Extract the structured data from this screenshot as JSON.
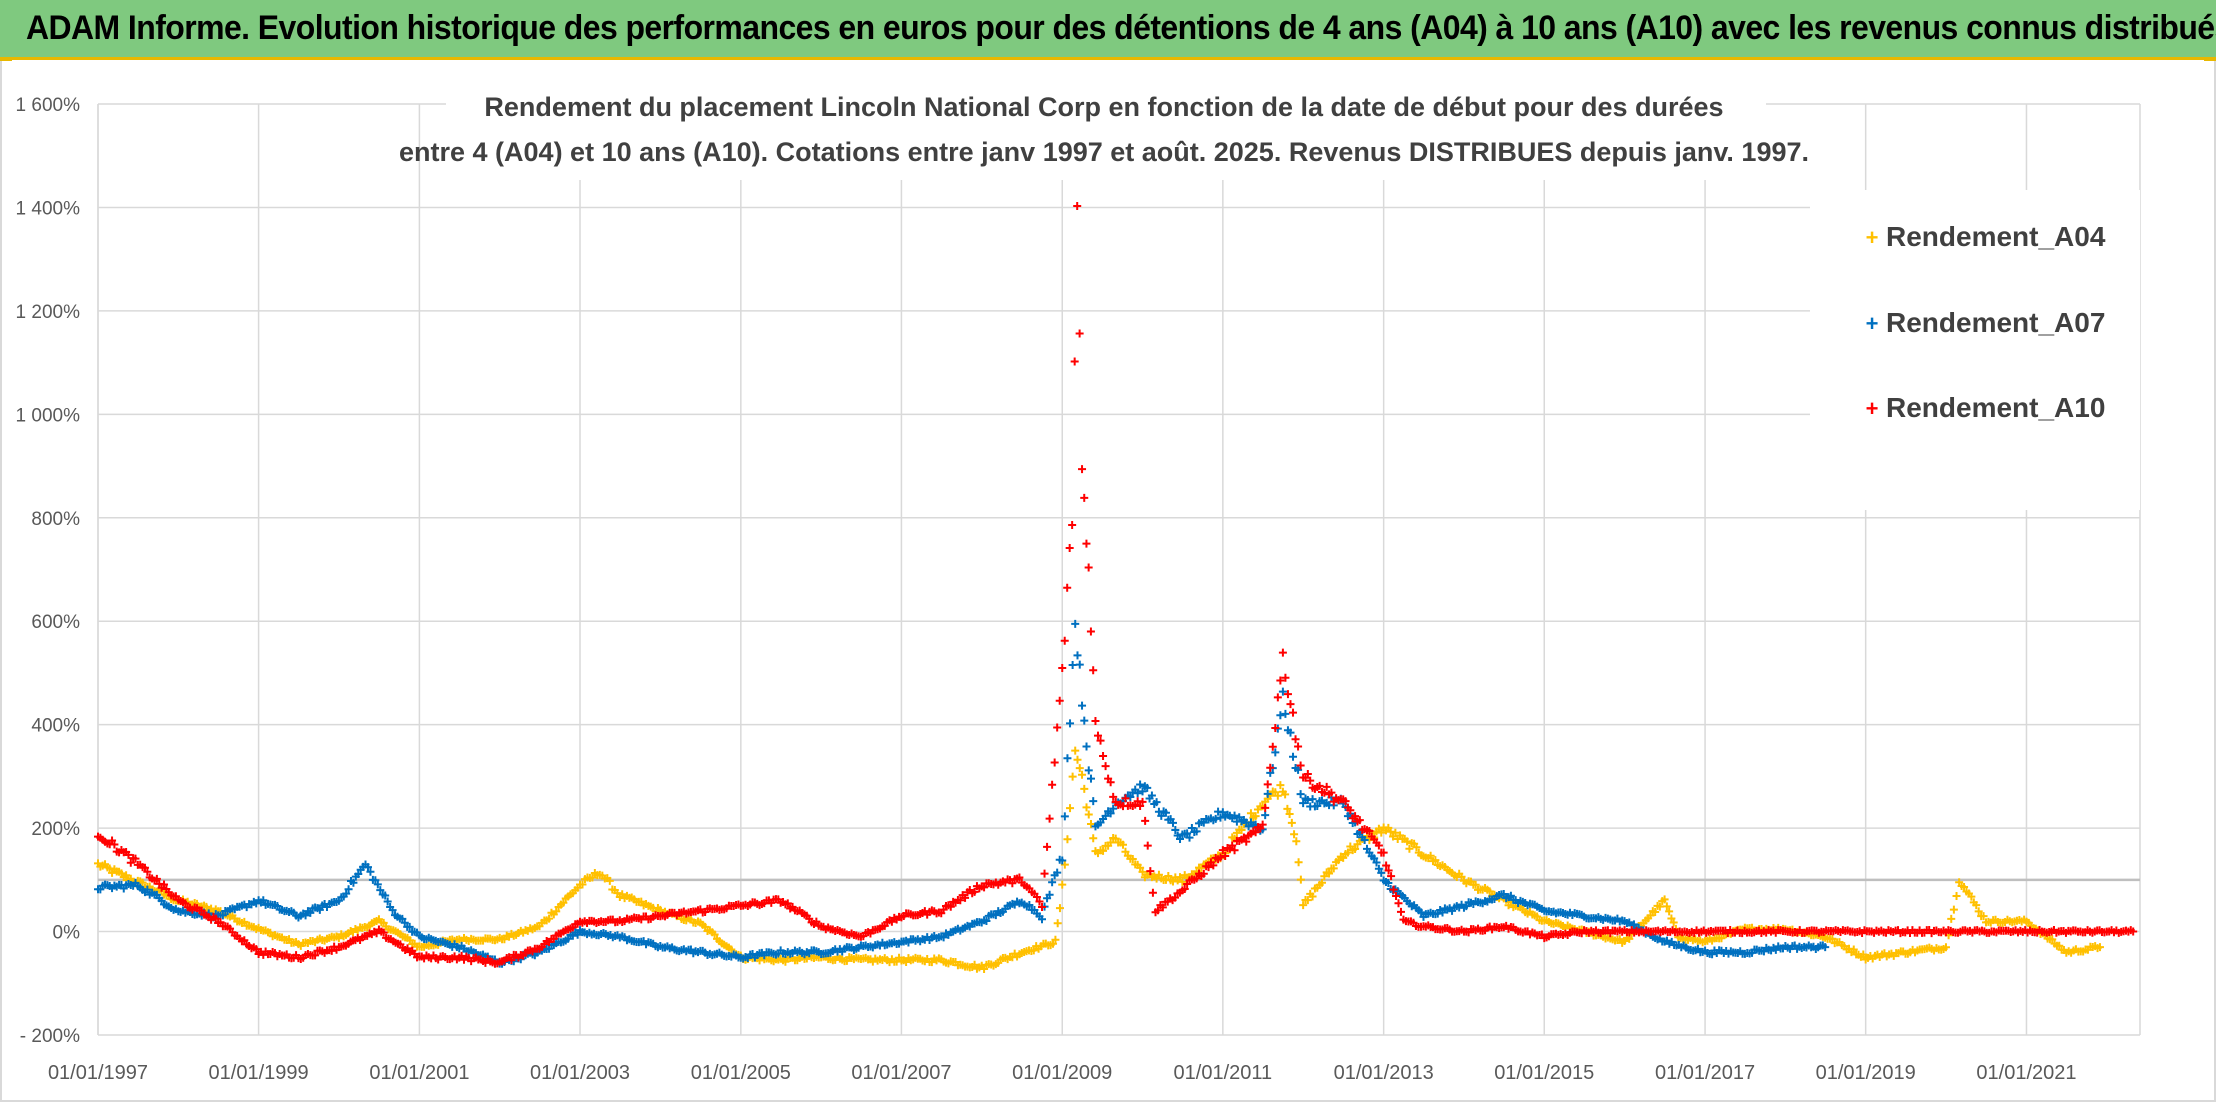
{
  "banner": {
    "title": "ADAM Informe. Evolution historique des performances en euros pour des détentions de 4 ans (A04) à 10 ans (A10) avec les revenus connus distribués"
  },
  "colors": {
    "banner_bg": "#7fc97f",
    "banner_border": "#e8b800",
    "A04": "#ffc000",
    "A07": "#0070c0",
    "A10": "#ff0000",
    "reference_line": "#bfbfbf"
  },
  "chart_data": {
    "type": "scatter",
    "marker": "plus",
    "title_lines": [
      "Rendement du placement Lincoln National Corp en fonction de la date de début pour des durées",
      "entre 4 (A04) et 10 ans (A10). Cotations entre janv 1997 et août. 2025. Revenus DISTRIBUES depuis janv. 1997."
    ],
    "xlabel": "",
    "ylabel": "",
    "x_type": "date",
    "xlim": [
      "1997-01-01",
      "2022-06-01"
    ],
    "x_ticks": [
      "01/01/1997",
      "01/01/1999",
      "01/01/2001",
      "01/01/2003",
      "01/01/2005",
      "01/01/2007",
      "01/01/2009",
      "01/01/2011",
      "01/01/2013",
      "01/01/2015",
      "01/01/2017",
      "01/01/2019",
      "01/01/2021"
    ],
    "ylim": [
      -200,
      1600
    ],
    "y_ticks": [
      -200,
      0,
      200,
      400,
      600,
      800,
      1000,
      1200,
      1400,
      1600
    ],
    "y_tick_labels": [
      "- 200%",
      "0%",
      "200%",
      "400%",
      "600%",
      "800%",
      "1 000%",
      "1 200%",
      "1 400%",
      "1 600%"
    ],
    "reference_line_y": 100,
    "grid": "vertical and horizontal",
    "legend_position": "top-right",
    "series": [
      {
        "name": "Rendement_A04",
        "points": [
          [
            "1997-01-01",
            130
          ],
          [
            "1997-07-01",
            95
          ],
          [
            "1998-01-01",
            60
          ],
          [
            "1998-07-01",
            40
          ],
          [
            "1999-01-01",
            5
          ],
          [
            "1999-07-01",
            -25
          ],
          [
            "2000-01-01",
            -10
          ],
          [
            "2000-07-01",
            20
          ],
          [
            "2001-01-01",
            -30
          ],
          [
            "2001-07-01",
            -15
          ],
          [
            "2002-01-01",
            -15
          ],
          [
            "2002-07-01",
            10
          ],
          [
            "2003-01-01",
            90
          ],
          [
            "2003-04-01",
            115
          ],
          [
            "2003-07-01",
            70
          ],
          [
            "2004-01-01",
            40
          ],
          [
            "2004-07-01",
            15
          ],
          [
            "2005-01-01",
            -50
          ],
          [
            "2005-07-01",
            -55
          ],
          [
            "2006-01-01",
            -50
          ],
          [
            "2006-07-01",
            -55
          ],
          [
            "2007-01-01",
            -55
          ],
          [
            "2007-07-01",
            -55
          ],
          [
            "2008-01-01",
            -70
          ],
          [
            "2008-07-01",
            -40
          ],
          [
            "2008-12-01",
            -20
          ],
          [
            "2009-01-01",
            80
          ],
          [
            "2009-03-01",
            350
          ],
          [
            "2009-04-01",
            300
          ],
          [
            "2009-06-01",
            150
          ],
          [
            "2009-09-01",
            180
          ],
          [
            "2010-01-01",
            110
          ],
          [
            "2010-07-01",
            100
          ],
          [
            "2011-01-01",
            150
          ],
          [
            "2011-07-01",
            250
          ],
          [
            "2011-10-01",
            280
          ],
          [
            "2011-12-01",
            180
          ],
          [
            "2012-01-01",
            50
          ],
          [
            "2012-07-01",
            150
          ],
          [
            "2013-01-01",
            200
          ],
          [
            "2013-07-01",
            150
          ],
          [
            "2014-01-01",
            100
          ],
          [
            "2014-07-01",
            60
          ],
          [
            "2015-01-01",
            20
          ],
          [
            "2015-07-01",
            0
          ],
          [
            "2016-01-01",
            -20
          ],
          [
            "2016-07-01",
            60
          ],
          [
            "2016-09-01",
            -10
          ],
          [
            "2017-01-01",
            -20
          ],
          [
            "2017-07-01",
            5
          ],
          [
            "2018-01-01",
            5
          ],
          [
            "2018-07-01",
            -10
          ],
          [
            "2019-01-01",
            -50
          ],
          [
            "2019-07-01",
            -40
          ],
          [
            "2020-01-01",
            -30
          ],
          [
            "2020-03-01",
            100
          ],
          [
            "2020-07-01",
            20
          ],
          [
            "2021-01-01",
            20
          ],
          [
            "2021-07-01",
            -40
          ],
          [
            "2021-12-01",
            -30
          ]
        ]
      },
      {
        "name": "Rendement_A07",
        "points": [
          [
            "1997-01-01",
            85
          ],
          [
            "1997-07-01",
            90
          ],
          [
            "1998-01-01",
            40
          ],
          [
            "1998-07-01",
            30
          ],
          [
            "1999-01-01",
            60
          ],
          [
            "1999-07-01",
            30
          ],
          [
            "2000-01-01",
            60
          ],
          [
            "2000-05-01",
            130
          ],
          [
            "2000-09-01",
            40
          ],
          [
            "2001-01-01",
            -10
          ],
          [
            "2001-07-01",
            -30
          ],
          [
            "2002-01-01",
            -60
          ],
          [
            "2002-07-01",
            -40
          ],
          [
            "2003-01-01",
            0
          ],
          [
            "2003-07-01",
            -10
          ],
          [
            "2004-01-01",
            -30
          ],
          [
            "2004-07-01",
            -40
          ],
          [
            "2005-01-01",
            -50
          ],
          [
            "2005-07-01",
            -40
          ],
          [
            "2006-01-01",
            -40
          ],
          [
            "2006-07-01",
            -30
          ],
          [
            "2007-01-01",
            -20
          ],
          [
            "2007-07-01",
            -10
          ],
          [
            "2008-01-01",
            20
          ],
          [
            "2008-07-01",
            60
          ],
          [
            "2008-10-01",
            30
          ],
          [
            "2009-01-01",
            150
          ],
          [
            "2009-03-01",
            600
          ],
          [
            "2009-04-01",
            450
          ],
          [
            "2009-06-01",
            200
          ],
          [
            "2009-09-01",
            250
          ],
          [
            "2010-01-01",
            280
          ],
          [
            "2010-07-01",
            180
          ],
          [
            "2011-01-01",
            230
          ],
          [
            "2011-07-01",
            200
          ],
          [
            "2011-10-01",
            450
          ],
          [
            "2012-01-01",
            250
          ],
          [
            "2012-07-01",
            250
          ],
          [
            "2013-01-01",
            100
          ],
          [
            "2013-07-01",
            30
          ],
          [
            "2014-01-01",
            50
          ],
          [
            "2014-07-01",
            70
          ],
          [
            "2015-01-01",
            40
          ],
          [
            "2015-07-01",
            30
          ],
          [
            "2016-01-01",
            20
          ],
          [
            "2016-07-01",
            -20
          ],
          [
            "2017-01-01",
            -40
          ],
          [
            "2017-07-01",
            -40
          ],
          [
            "2018-01-01",
            -30
          ],
          [
            "2018-07-01",
            -30
          ]
        ]
      },
      {
        "name": "Rendement_A10",
        "points": [
          [
            "1997-01-01",
            190
          ],
          [
            "1997-07-01",
            130
          ],
          [
            "1998-01-01",
            60
          ],
          [
            "1998-07-01",
            20
          ],
          [
            "1999-01-01",
            -40
          ],
          [
            "1999-07-01",
            -50
          ],
          [
            "2000-01-01",
            -30
          ],
          [
            "2000-07-01",
            0
          ],
          [
            "2001-01-01",
            -50
          ],
          [
            "2001-07-01",
            -50
          ],
          [
            "2002-01-01",
            -60
          ],
          [
            "2002-07-01",
            -30
          ],
          [
            "2003-01-01",
            20
          ],
          [
            "2003-07-01",
            20
          ],
          [
            "2004-01-01",
            30
          ],
          [
            "2004-07-01",
            40
          ],
          [
            "2005-01-01",
            50
          ],
          [
            "2005-07-01",
            60
          ],
          [
            "2006-01-01",
            10
          ],
          [
            "2006-07-01",
            -10
          ],
          [
            "2007-01-01",
            30
          ],
          [
            "2007-07-01",
            40
          ],
          [
            "2008-01-01",
            90
          ],
          [
            "2008-07-01",
            100
          ],
          [
            "2008-10-01",
            50
          ],
          [
            "2009-01-01",
            500
          ],
          [
            "2009-02-15",
            800
          ],
          [
            "2009-03-10",
            1400
          ],
          [
            "2009-04-01",
            900
          ],
          [
            "2009-05-01",
            700
          ],
          [
            "2009-06-01",
            400
          ],
          [
            "2009-09-01",
            250
          ],
          [
            "2010-01-01",
            250
          ],
          [
            "2010-03-01",
            40
          ],
          [
            "2010-07-01",
            80
          ],
          [
            "2011-01-01",
            150
          ],
          [
            "2011-07-01",
            200
          ],
          [
            "2011-10-01",
            530
          ],
          [
            "2012-01-01",
            300
          ],
          [
            "2012-07-01",
            250
          ],
          [
            "2013-01-01",
            150
          ],
          [
            "2013-04-01",
            20
          ],
          [
            "2013-07-01",
            10
          ],
          [
            "2014-01-01",
            0
          ],
          [
            "2014-07-01",
            10
          ],
          [
            "2015-01-01",
            -10
          ],
          [
            "2015-07-01",
            0
          ],
          [
            "2016-01-01",
            0
          ],
          [
            "2018-01-01",
            0
          ],
          [
            "2020-01-01",
            0
          ],
          [
            "2022-05-01",
            0
          ]
        ]
      }
    ]
  }
}
